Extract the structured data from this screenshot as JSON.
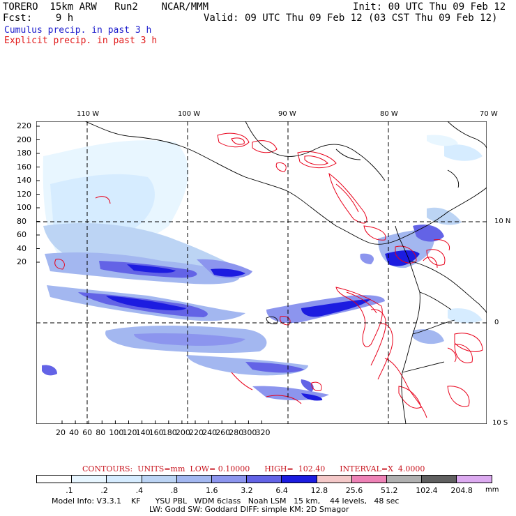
{
  "header": {
    "model": "TORERO  15km ARW   Run2    NCAR/MMM",
    "init": "Init: 00 UTC Thu 09 Feb 12",
    "fcst": "Fcst:    9 h",
    "valid": "Valid: 09 UTC Thu 09 Feb 12 (03 CST Thu 09 Feb 12)",
    "legend_cumulus": "Cumulus precip. in past 3 h",
    "legend_explicit": "Explicit precip. in past 3 h"
  },
  "colors": {
    "cumulus_label": "#1c1ccc",
    "explicit_label": "#e11919",
    "contour_red": "#e8001a",
    "grid": "#000000"
  },
  "map": {
    "lon_labels": [
      "110 W",
      "100 W",
      "90 W",
      "80 W",
      "70 W"
    ],
    "lat_labels": [
      "10 N",
      "0",
      "10 S"
    ],
    "y_ticks": [
      "220",
      "200",
      "180",
      "160",
      "140",
      "120",
      "100",
      "80",
      "60",
      "40",
      "20"
    ],
    "x_ticks": [
      "20",
      "40",
      "60",
      "80",
      "100",
      "120",
      "140",
      "160",
      "180",
      "200",
      "220",
      "240",
      "260",
      "280",
      "300",
      "320"
    ]
  },
  "contours": {
    "text": "CONTOURS:  UNITS=mm  LOW= 0.10000      HIGH=  102.40      INTERVAL=X  4.0000"
  },
  "colorbar": {
    "unit": "mm",
    "labels": [
      ".1",
      ".2",
      ".4",
      ".8",
      "1.6",
      "3.2",
      "6.4",
      "12.8",
      "25.6",
      "51.2",
      "102.4",
      "204.8"
    ],
    "colors": [
      "#ffffff",
      "#e8f6ff",
      "#d6ecff",
      "#bcd4f4",
      "#a3b7f0",
      "#8c95ee",
      "#6363e6",
      "#1c1ce0",
      "#f4c8c8",
      "#ee82b6",
      "#b0b0b0",
      "#606060",
      "#dcaaf0"
    ]
  },
  "model_info": {
    "line1": "Model Info: V3.3.1    KF      YSU PBL   WDM 6class   Noah LSM   15 km,    44 levels,   48 sec",
    "line2": "LW: Godd SW: Goddard DIFF: simple KM: 2D Smagor"
  }
}
